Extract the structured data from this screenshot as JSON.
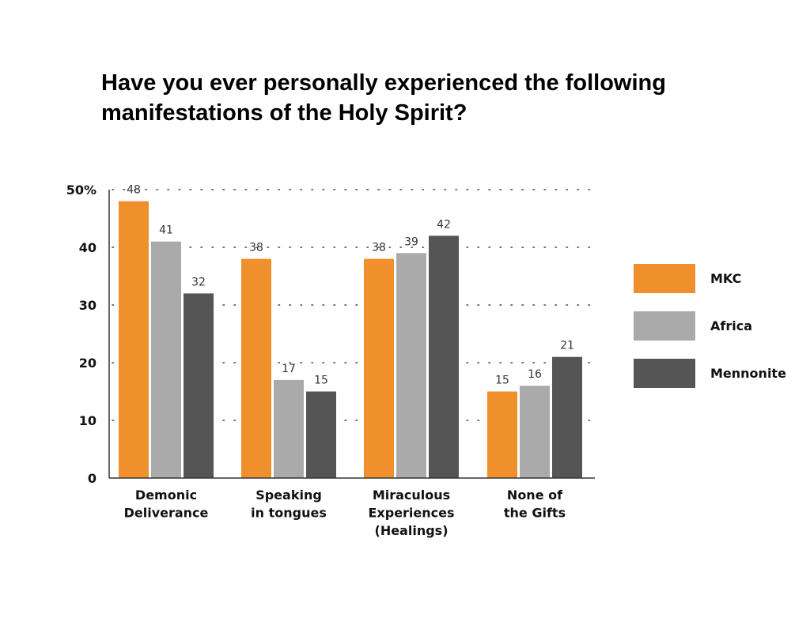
{
  "title": "Have you ever personally experienced the following manifestations of the Holy Spirit?",
  "chart_data": {
    "type": "bar",
    "title": "Have you ever personally experienced the following manifestations of the Holy Spirit?",
    "categories": [
      [
        "Demonic",
        "Deliverance"
      ],
      [
        "Speaking",
        "in tongues"
      ],
      [
        "Miraculous",
        "Experiences",
        "(Healings)"
      ],
      [
        "None of",
        "the Gifts"
      ]
    ],
    "series": [
      {
        "name": "MKC",
        "color": "#f0902c",
        "values": [
          48,
          38,
          38,
          15
        ]
      },
      {
        "name": "Africa",
        "color": "#aaaaaa",
        "values": [
          41,
          17,
          39,
          16
        ]
      },
      {
        "name": "Mennonite",
        "color": "#555555",
        "values": [
          32,
          15,
          42,
          21
        ]
      }
    ],
    "yticks": [
      "0",
      "10",
      "20",
      "30",
      "40",
      "50%"
    ],
    "ylim": [
      0,
      50
    ],
    "xlabel": "",
    "ylabel": "",
    "grid": "dotted horizontal",
    "legend_position": "right"
  }
}
